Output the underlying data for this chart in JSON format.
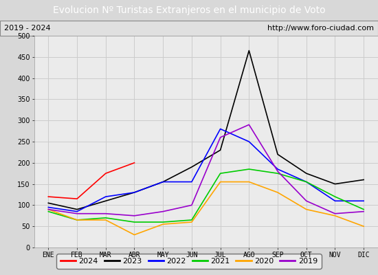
{
  "title": "Evolucion Nº Turistas Extranjeros en el municipio de Voto",
  "subtitle_left": "2019 - 2024",
  "subtitle_right": "http://www.foro-ciudad.com",
  "title_bg_color": "#5b9bd5",
  "title_text_color": "#ffffff",
  "subtitle_bg_color": "#e0e0e0",
  "subtitle_text_color": "#000000",
  "x_labels": [
    "ENE",
    "FEB",
    "MAR",
    "ABR",
    "MAY",
    "JUN",
    "JUL",
    "AGO",
    "SEP",
    "OCT",
    "NOV",
    "DIC"
  ],
  "ylim": [
    0,
    500
  ],
  "yticks": [
    0,
    50,
    100,
    150,
    200,
    250,
    300,
    350,
    400,
    450,
    500
  ],
  "series": {
    "2024": {
      "color": "#ff0000",
      "data": [
        120,
        115,
        175,
        200,
        null,
        null,
        null,
        null,
        null,
        null,
        null,
        null
      ]
    },
    "2023": {
      "color": "#000000",
      "data": [
        105,
        90,
        110,
        130,
        155,
        190,
        230,
        465,
        220,
        175,
        150,
        160
      ]
    },
    "2022": {
      "color": "#0000ff",
      "data": [
        95,
        85,
        120,
        130,
        155,
        155,
        280,
        250,
        185,
        155,
        110,
        110
      ]
    },
    "2021": {
      "color": "#00cc00",
      "data": [
        85,
        65,
        70,
        60,
        60,
        65,
        175,
        185,
        175,
        155,
        120,
        90
      ]
    },
    "2020": {
      "color": "#ffa500",
      "data": [
        90,
        65,
        65,
        30,
        55,
        60,
        155,
        155,
        130,
        90,
        75,
        50
      ]
    },
    "2019": {
      "color": "#9900cc",
      "data": [
        90,
        80,
        80,
        75,
        85,
        100,
        260,
        290,
        180,
        110,
        80,
        85
      ]
    }
  },
  "legend_order": [
    "2024",
    "2023",
    "2022",
    "2021",
    "2020",
    "2019"
  ],
  "grid_color": "#cccccc",
  "plot_bg_color": "#ebebeb",
  "fig_bg_color": "#d8d8d8"
}
